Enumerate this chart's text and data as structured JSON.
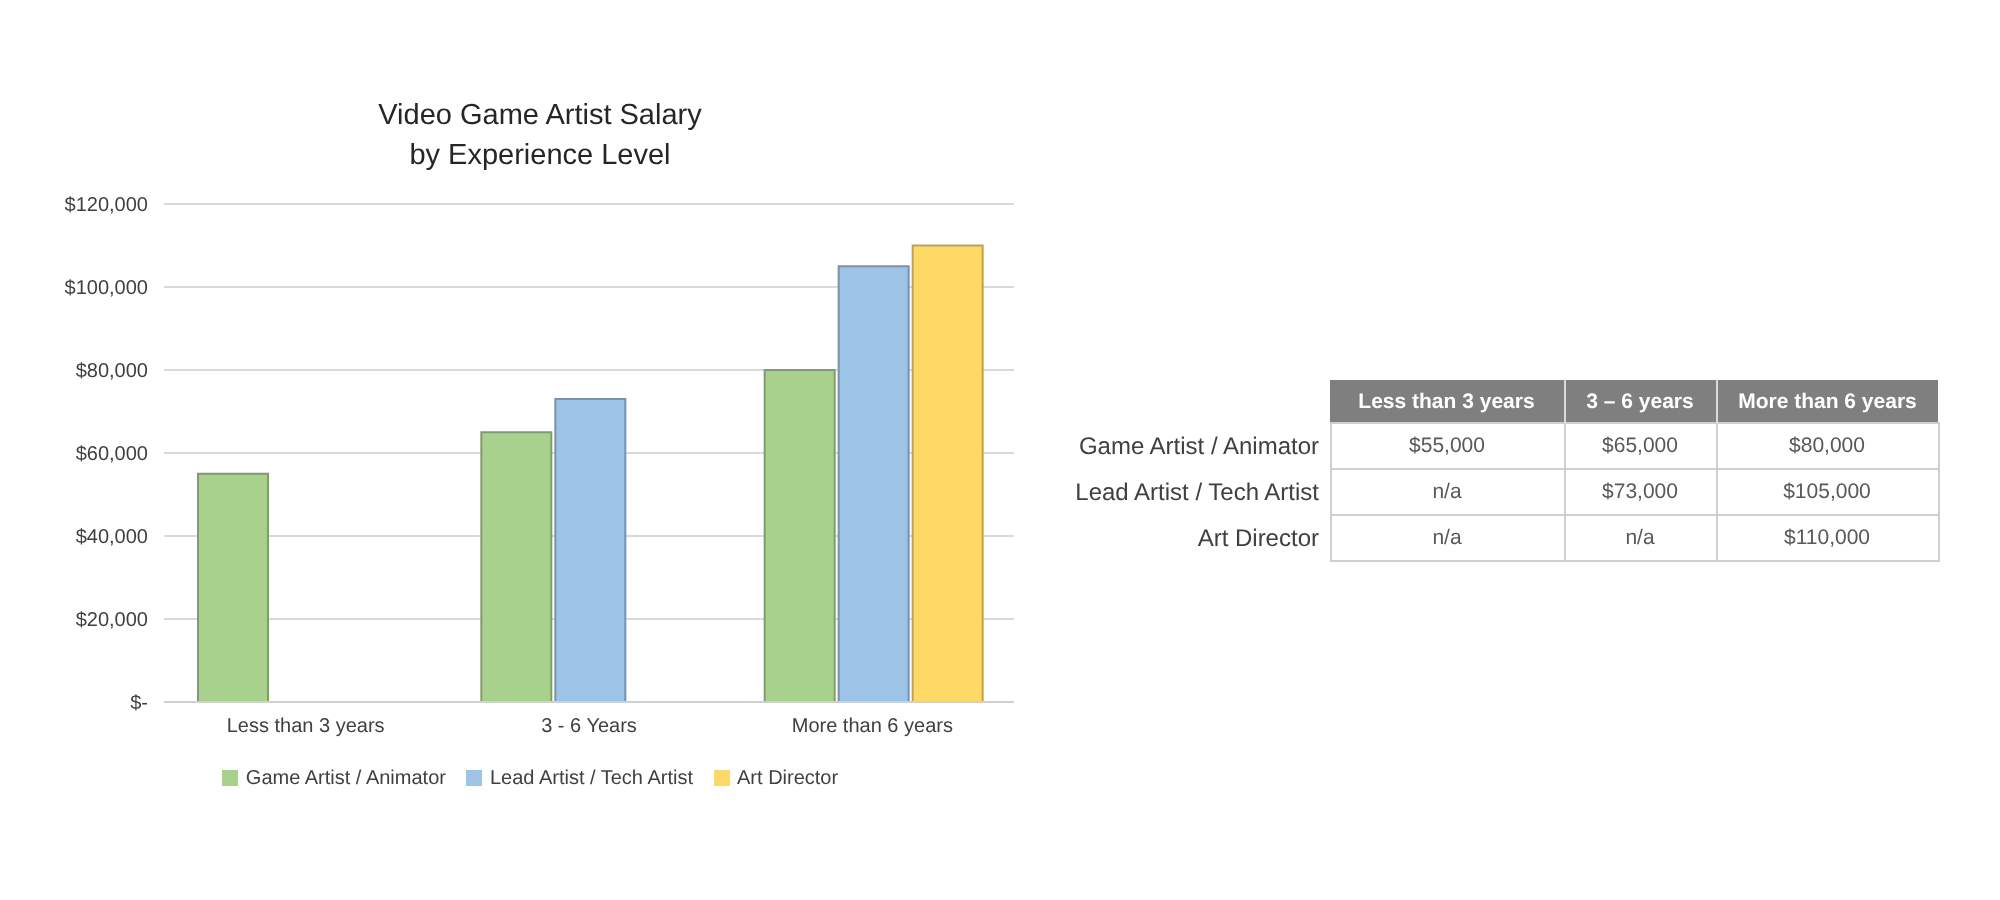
{
  "chart_data": [
    {
      "type": "bar",
      "title": "Video Game Artist Salary\nby Experience Level",
      "categories": [
        "Less than 3 years",
        "3 - 6 Years",
        "More than 6 years"
      ],
      "series": [
        {
          "name": "Game Artist / Animator",
          "color": "#a9d18e",
          "values": [
            55000,
            65000,
            80000
          ]
        },
        {
          "name": "Lead Artist / Tech Artist",
          "color": "#9dc3e6",
          "values": [
            null,
            73000,
            105000
          ]
        },
        {
          "name": "Art Director",
          "color": "#ffd966",
          "values": [
            null,
            null,
            110000
          ]
        }
      ],
      "ylim": [
        0,
        120000
      ],
      "yticks": [
        {
          "value": 0,
          "label": "$-"
        },
        {
          "value": 20000,
          "label": "$20,000"
        },
        {
          "value": 40000,
          "label": "$40,000"
        },
        {
          "value": 60000,
          "label": "$60,000"
        },
        {
          "value": 80000,
          "label": "$80,000"
        },
        {
          "value": 100000,
          "label": "$100,000"
        },
        {
          "value": 120000,
          "label": "$120,000"
        }
      ],
      "grid": "y",
      "legend": "bottom"
    },
    {
      "type": "other",
      "categories": [
        "Less than 3 years",
        "3 – 6 years",
        "More than 6 years"
      ],
      "series": [
        {
          "name": "Game Artist / Animator",
          "values": [
            55000,
            65000,
            80000
          ],
          "value_labels": [
            "$55,000",
            "$65,000",
            "$80,000"
          ]
        },
        {
          "name": "Lead Artist / Tech Artist",
          "values": [
            null,
            73000,
            105000
          ],
          "value_labels": [
            "n/a",
            "$73,000",
            "$105,000"
          ]
        },
        {
          "name": "Art Director",
          "values": [
            null,
            null,
            110000
          ],
          "value_labels": [
            "n/a",
            "n/a",
            "$110,000"
          ]
        }
      ]
    }
  ]
}
